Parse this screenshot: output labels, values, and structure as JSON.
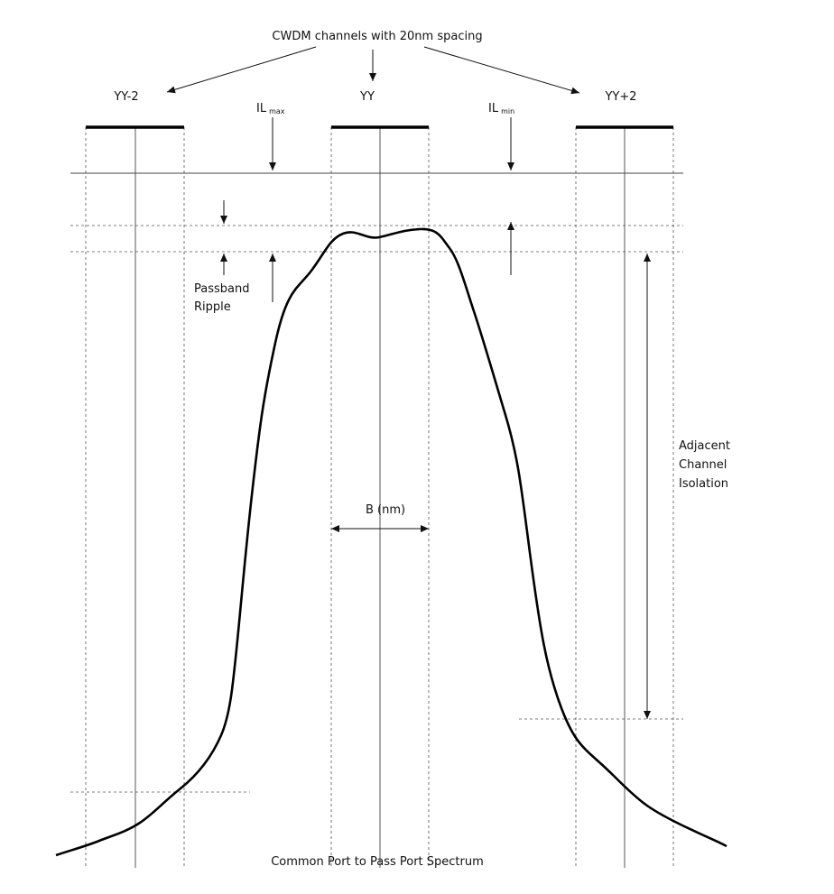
{
  "title": "CWDM channels with 20nm spacing",
  "channels": [
    "YY-2",
    "YY",
    "YY+2"
  ],
  "il_max": {
    "main": "IL",
    "sub": "max"
  },
  "il_min": {
    "main": "IL",
    "sub": "min"
  },
  "passband_ripple": [
    "Passband",
    "Ripple"
  ],
  "bandwidth": "B (nm)",
  "adjacent_channel_isolation": [
    "Adjacent",
    "Channel",
    "Isolation"
  ],
  "caption": "Common Port to Pass Port Spectrum"
}
